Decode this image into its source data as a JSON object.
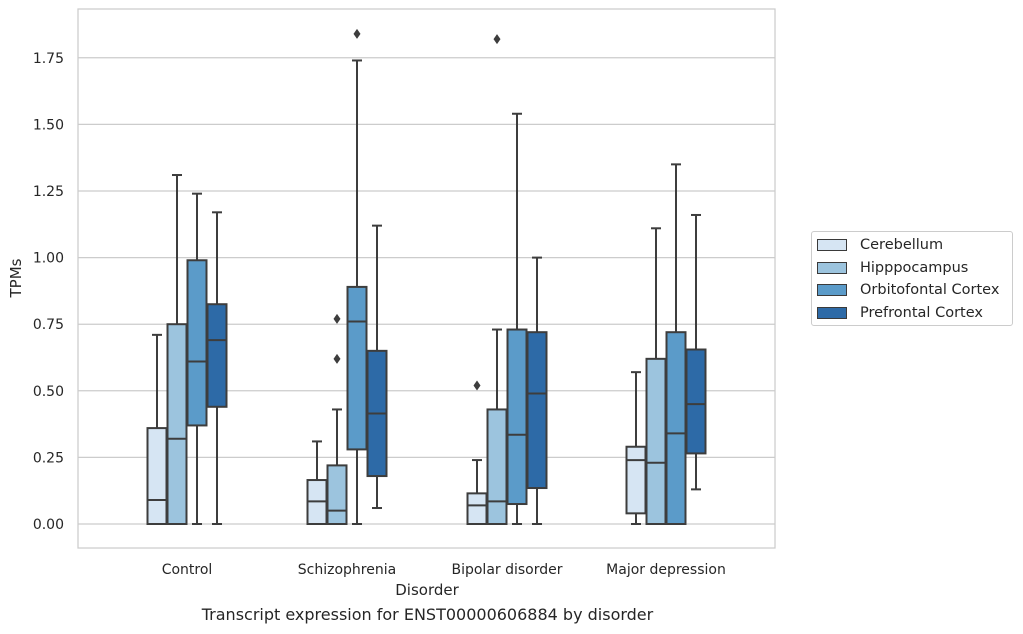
{
  "chart_data": {
    "type": "boxplot",
    "title": "",
    "caption": "Transcript expression for ENST00000606884 by disorder",
    "xlabel": "Disorder",
    "ylabel": "TPMs",
    "ylim": [
      -0.09,
      1.94
    ],
    "yticks": [
      "0.00",
      "0.25",
      "0.50",
      "0.75",
      "1.00",
      "1.25",
      "1.50",
      "1.75"
    ],
    "grid": true,
    "legend_position": "right",
    "categories": [
      "Control",
      "Schizophrenia",
      "Bipolar disorder",
      "Major depression"
    ],
    "series": [
      {
        "name": "Cerebellum",
        "color": "#d6e5f3",
        "boxes": [
          {
            "whisker_low": 0.0,
            "q1": 0.0,
            "median": 0.09,
            "q3": 0.36,
            "whisker_high": 0.71,
            "outliers": []
          },
          {
            "whisker_low": 0.0,
            "q1": 0.0,
            "median": 0.085,
            "q3": 0.165,
            "whisker_high": 0.31,
            "outliers": []
          },
          {
            "whisker_low": 0.0,
            "q1": 0.0,
            "median": 0.07,
            "q3": 0.115,
            "whisker_high": 0.24,
            "outliers": [
              0.52
            ]
          },
          {
            "whisker_low": 0.0,
            "q1": 0.04,
            "median": 0.24,
            "q3": 0.29,
            "whisker_high": 0.57,
            "outliers": []
          }
        ]
      },
      {
        "name": "Hipppocampus",
        "color": "#9cc4de",
        "boxes": [
          {
            "whisker_low": 0.0,
            "q1": 0.0,
            "median": 0.32,
            "q3": 0.75,
            "whisker_high": 1.31,
            "outliers": []
          },
          {
            "whisker_low": 0.0,
            "q1": 0.0,
            "median": 0.05,
            "q3": 0.22,
            "whisker_high": 0.43,
            "outliers": [
              0.62,
              0.77
            ]
          },
          {
            "whisker_low": 0.0,
            "q1": 0.0,
            "median": 0.085,
            "q3": 0.43,
            "whisker_high": 0.73,
            "outliers": [
              1.82
            ]
          },
          {
            "whisker_low": 0.0,
            "q1": 0.0,
            "median": 0.23,
            "q3": 0.62,
            "whisker_high": 1.11,
            "outliers": []
          }
        ]
      },
      {
        "name": "Orbitofontal Cortex",
        "color": "#5b9bc9",
        "boxes": [
          {
            "whisker_low": 0.0,
            "q1": 0.37,
            "median": 0.61,
            "q3": 0.99,
            "whisker_high": 1.24,
            "outliers": []
          },
          {
            "whisker_low": 0.0,
            "q1": 0.28,
            "median": 0.76,
            "q3": 0.89,
            "whisker_high": 1.74,
            "outliers": [
              1.84
            ]
          },
          {
            "whisker_low": 0.0,
            "q1": 0.075,
            "median": 0.335,
            "q3": 0.73,
            "whisker_high": 1.54,
            "outliers": []
          },
          {
            "whisker_low": 0.0,
            "q1": 0.0,
            "median": 0.34,
            "q3": 0.72,
            "whisker_high": 1.35,
            "outliers": []
          }
        ]
      },
      {
        "name": "Prefrontal Cortex",
        "color": "#2d6aa7",
        "boxes": [
          {
            "whisker_low": 0.0,
            "q1": 0.44,
            "median": 0.69,
            "q3": 0.825,
            "whisker_high": 1.17,
            "outliers": []
          },
          {
            "whisker_low": 0.06,
            "q1": 0.18,
            "median": 0.415,
            "q3": 0.65,
            "whisker_high": 1.12,
            "outliers": []
          },
          {
            "whisker_low": 0.0,
            "q1": 0.135,
            "median": 0.49,
            "q3": 0.72,
            "whisker_high": 1.0,
            "outliers": []
          },
          {
            "whisker_low": 0.13,
            "q1": 0.265,
            "median": 0.45,
            "q3": 0.655,
            "whisker_high": 1.16,
            "outliers": []
          }
        ]
      }
    ]
  }
}
